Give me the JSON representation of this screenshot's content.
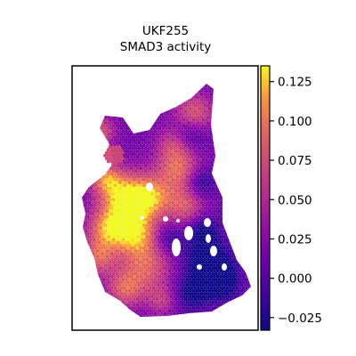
{
  "chart_data": {
    "type": "heatmap",
    "title_lines": [
      "UKF255",
      "SMAD3 activity"
    ],
    "colormap": "plasma",
    "colorbar": {
      "min": -0.033,
      "max": 0.135,
      "ticks": [
        -0.025,
        0.0,
        0.025,
        0.05,
        0.075,
        0.1,
        0.125
      ],
      "tick_labels": [
        "−0.025",
        "0.000",
        "0.025",
        "0.050",
        "0.075",
        "0.100",
        "0.125"
      ]
    },
    "xticks": [],
    "yticks": [],
    "grid": false
  }
}
